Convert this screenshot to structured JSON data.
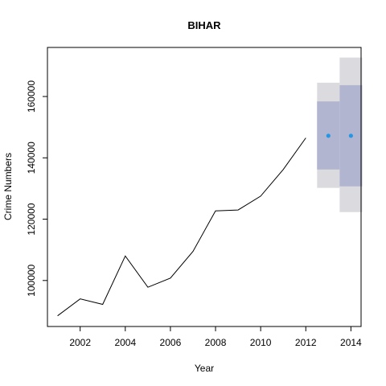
{
  "chart_data": {
    "type": "line",
    "title": "BIHAR",
    "xlabel": "Year",
    "ylabel": "Crime Numbers",
    "xlim": [
      2000.55,
      2014.45
    ],
    "ylim": [
      85000,
      176000
    ],
    "x_ticks": [
      2002,
      2004,
      2006,
      2008,
      2010,
      2012,
      2014
    ],
    "y_ticks": [
      100000,
      120000,
      140000,
      160000
    ],
    "grid": false,
    "series": [
      {
        "values": [
          {
            "x": 2001,
            "y": 88500
          },
          {
            "x": 2002,
            "y": 94000
          },
          {
            "x": 2003,
            "y": 92200
          },
          {
            "x": 2004,
            "y": 108000
          },
          {
            "x": 2005,
            "y": 97800
          },
          {
            "x": 2006,
            "y": 100800
          },
          {
            "x": 2007,
            "y": 109500
          },
          {
            "x": 2008,
            "y": 122700
          },
          {
            "x": 2009,
            "y": 123000
          },
          {
            "x": 2010,
            "y": 127500
          },
          {
            "x": 2011,
            "y": 136200
          },
          {
            "x": 2012,
            "y": 146500
          }
        ]
      }
    ],
    "forecast": [
      {
        "x": 2013,
        "point": 147200,
        "lo80": 136200,
        "hi80": 158400,
        "lo95": 130200,
        "hi95": 164500
      },
      {
        "x": 2014,
        "point": 147200,
        "lo80": 130700,
        "hi80": 163700,
        "lo95": 122300,
        "hi95": 172700
      }
    ],
    "colors": {
      "line": "#000000",
      "ci95": "#dbdbdf",
      "ci80": "#b1b5cf",
      "forecast_point": "#2297e6"
    }
  }
}
